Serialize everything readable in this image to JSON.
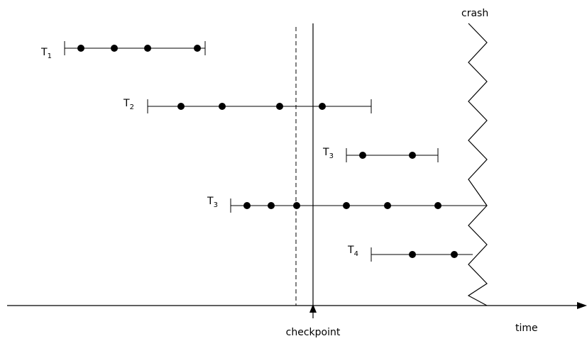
{
  "diagram": {
    "labels": {
      "crash": "crash",
      "checkpoint": "checkpoint",
      "time": "time"
    },
    "transactions": [
      {
        "letter": "T",
        "subscript": "1",
        "ops": 4
      },
      {
        "letter": "T",
        "subscript": "2",
        "ops": 4
      },
      {
        "letter": "T",
        "subscript": "3",
        "ops": 2
      },
      {
        "letter": "T",
        "subscript": "3",
        "ops": 6
      },
      {
        "letter": "T",
        "subscript": "4",
        "ops": 2
      }
    ],
    "colors": {
      "ink": "#000000",
      "background": "#ffffff"
    }
  }
}
